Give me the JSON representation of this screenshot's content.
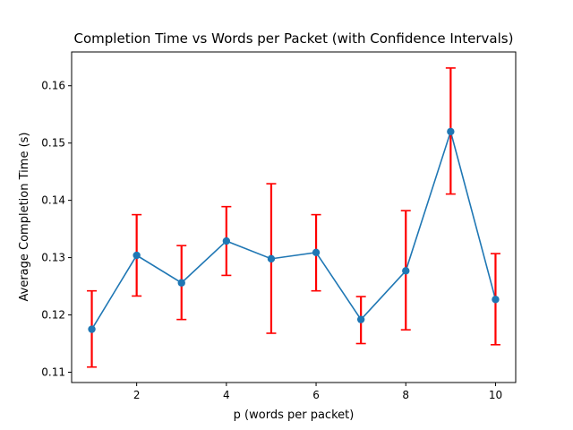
{
  "chart_data": {
    "type": "line",
    "title": "Completion Time vs Words per Packet (with Confidence Intervals)",
    "xlabel": "p (words per packet)",
    "ylabel": "Average Completion Time (s)",
    "xlim": [
      0.55,
      10.45
    ],
    "ylim": [
      0.1082,
      0.1659
    ],
    "xticks": [
      2,
      4,
      6,
      8,
      10
    ],
    "yticks": [
      0.11,
      0.12,
      0.13,
      0.14,
      0.15,
      0.16
    ],
    "grid": false,
    "series": [
      {
        "x": [
          1,
          2,
          3,
          4,
          5,
          6,
          7,
          8,
          9,
          10
        ],
        "y": [
          0.1175,
          0.1304,
          0.1256,
          0.1329,
          0.1298,
          0.1309,
          0.1192,
          0.1277,
          0.152,
          0.1227
        ],
        "ci_lower": [
          0.1109,
          0.1233,
          0.1192,
          0.1269,
          0.1168,
          0.1242,
          0.115,
          0.1174,
          0.1411,
          0.1148
        ],
        "ci_upper": [
          0.1242,
          0.1375,
          0.1321,
          0.1389,
          0.1429,
          0.1375,
          0.1232,
          0.1382,
          0.1631,
          0.1307
        ],
        "color": "#1f77b4",
        "errorbar_color": "#ff0000"
      }
    ]
  }
}
